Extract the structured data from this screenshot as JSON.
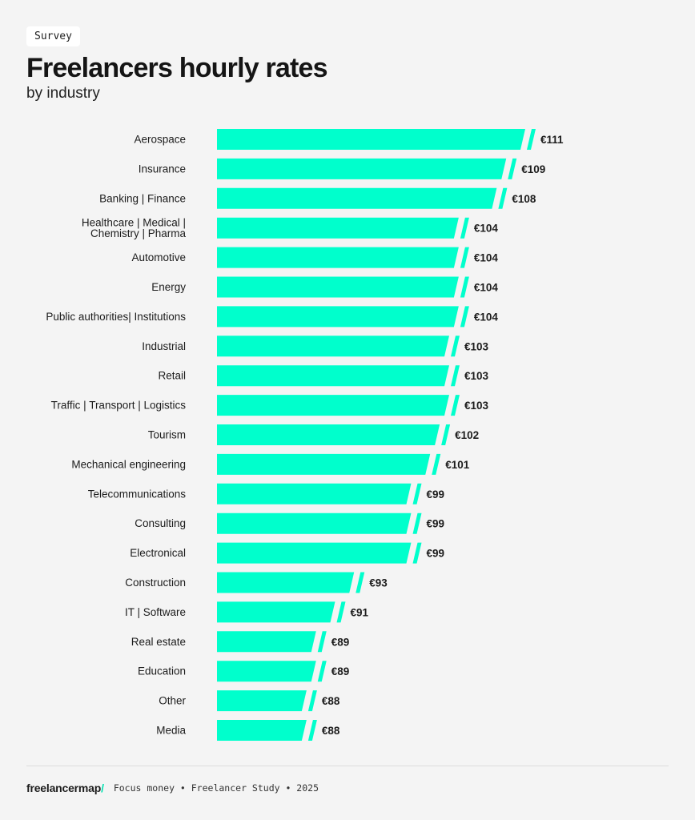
{
  "tag": "Survey",
  "title": "Freelancers hourly rates",
  "subtitle": "by industry",
  "colors": {
    "bar": "#00ffcc",
    "text": "#1c1c1c",
    "background": "#f4f4f4"
  },
  "chart_data": {
    "type": "bar",
    "orientation": "horizontal",
    "title": "Freelancers hourly rates",
    "subtitle": "by industry",
    "unit": "€",
    "categories": [
      "Aerospace",
      "Insurance",
      "Banking | Finance",
      "Healthcare | Medical |\nChemistry | Pharma",
      "Automotive",
      "Energy",
      "Public authorities| Institutions",
      "Industrial",
      "Retail",
      "Traffic | Transport | Logistics",
      "Tourism",
      "Mechanical engineering",
      "Telecommunications",
      "Consulting",
      "Electronical",
      "Construction",
      "IT | Software",
      "Real estate",
      "Education",
      "Other",
      "Media"
    ],
    "values": [
      111,
      109,
      108,
      104,
      104,
      104,
      104,
      103,
      103,
      103,
      102,
      101,
      99,
      99,
      99,
      93,
      91,
      89,
      89,
      88,
      88
    ],
    "value_labels": [
      "€111",
      "€109",
      "€108",
      "€104",
      "€104",
      "€104",
      "€104",
      "€103",
      "€103",
      "€103",
      "€102",
      "€101",
      "€99",
      "€99",
      "€99",
      "€93",
      "€91",
      "€89",
      "€89",
      "€88",
      "€88"
    ],
    "axis_broken": true,
    "grid": false,
    "legend": "none"
  },
  "footer": {
    "brand": "freelancermap",
    "brand_slash": "/",
    "source": "Focus money • Freelancer Study • 2025"
  }
}
